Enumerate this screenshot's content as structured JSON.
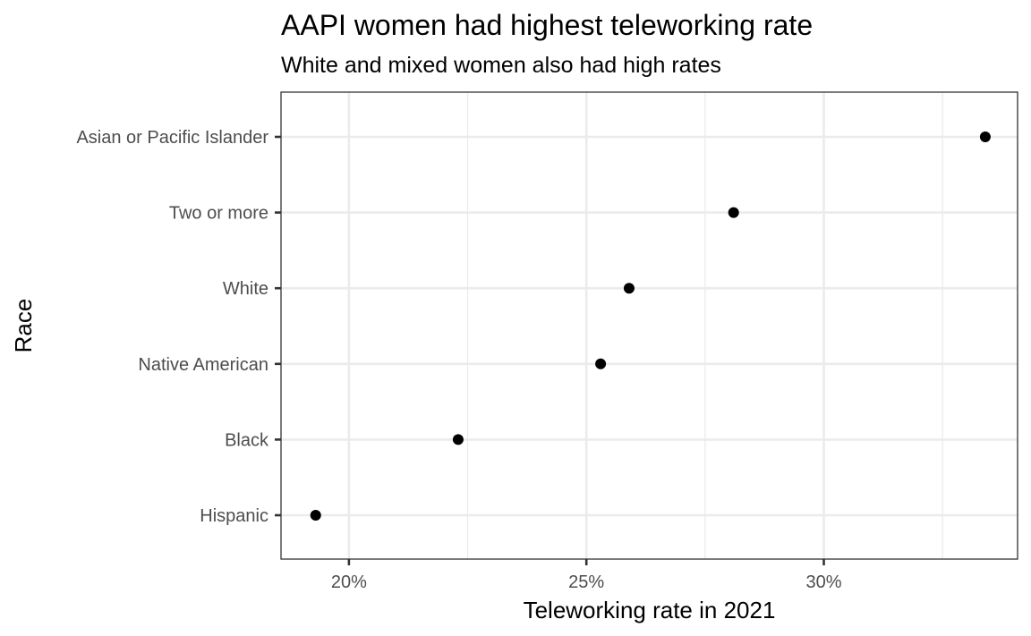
{
  "chart_data": {
    "type": "scatter",
    "title": "AAPI women had highest teleworking rate",
    "subtitle": "White and mixed women also had high rates",
    "xlabel": "Teleworking rate in 2021",
    "ylabel": "Race",
    "xlim": [
      0.1857,
      0.3408
    ],
    "x_ticks": [
      0.2,
      0.25,
      0.3
    ],
    "x_tick_labels": [
      "20%",
      "25%",
      "30%"
    ],
    "x_minor_ticks": [
      0.225,
      0.275,
      0.325
    ],
    "categories": [
      "Hispanic",
      "Black",
      "Native American",
      "White",
      "Two or more",
      "Asian or Pacific Islander"
    ],
    "values": [
      0.193,
      0.223,
      0.253,
      0.259,
      0.281,
      0.334
    ],
    "grid": true,
    "point_color": "#000000"
  }
}
